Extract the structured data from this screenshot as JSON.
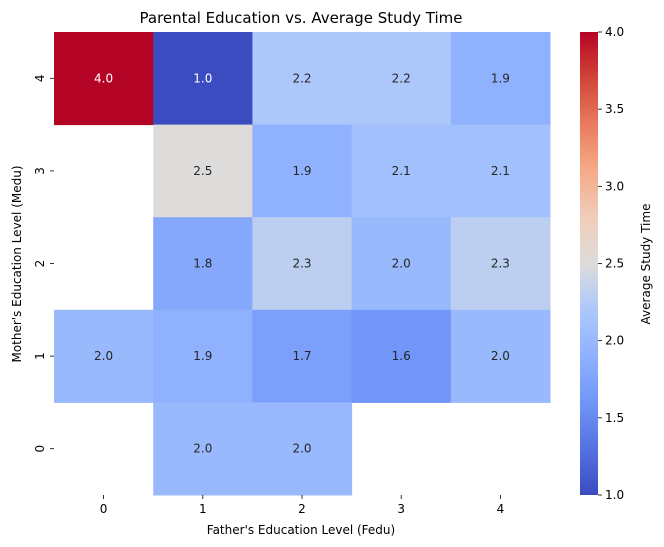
{
  "chart_data": {
    "type": "heatmap",
    "title": "Parental Education vs. Average Study Time",
    "xlabel": "Father's Education Level (Fedu)",
    "ylabel": "Mother's Education Level (Medu)",
    "x_categories": [
      "0",
      "1",
      "2",
      "3",
      "4"
    ],
    "y_categories": [
      "4",
      "3",
      "2",
      "1",
      "0"
    ],
    "values": [
      [
        4.0,
        1.0,
        2.2,
        2.2,
        1.9
      ],
      [
        null,
        2.5,
        1.9,
        2.1,
        2.1
      ],
      [
        null,
        1.8,
        2.3,
        2.0,
        2.3
      ],
      [
        2.0,
        1.9,
        1.7,
        1.6,
        2.0
      ],
      [
        null,
        2.0,
        2.0,
        null,
        null
      ]
    ],
    "colormap": "coolwarm",
    "vmin": 1.0,
    "vmax": 4.0,
    "colorbar": {
      "label": "Average Study Time",
      "ticks": [
        "1.0",
        "1.5",
        "2.0",
        "2.5",
        "3.0",
        "3.5",
        "4.0"
      ]
    }
  }
}
